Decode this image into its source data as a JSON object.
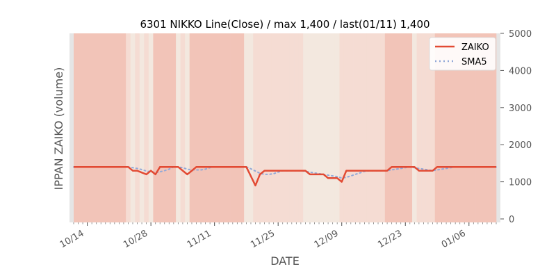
{
  "chart_data": {
    "type": "line",
    "title": "6301 NIKKO Line(Close) / max 1,400 / last(01/11) 1,400",
    "xlabel": "DATE",
    "ylabel": "IPPAN ZAIKO (volume)",
    "ylim": [
      0,
      5000
    ],
    "y_ticks": [
      "0",
      "1000",
      "2000",
      "3000",
      "4000",
      "5000"
    ],
    "y_axis_side": "right",
    "x_tick_labels": [
      "10/14",
      "10/28",
      "11/11",
      "11/25",
      "12/09",
      "12/23",
      "01/06"
    ],
    "grid": false,
    "legend_position": "top-right",
    "background_shading": "daily vertical bands in light red/beige tones",
    "colors": {
      "ZAIKO": "#e24a33",
      "SMA5": "#92a9d8",
      "band_dark": "#f2c4b8",
      "band_mid": "#f5dcd3",
      "band_light": "#f3e8df",
      "frame": "#e5e5e5"
    },
    "series": [
      {
        "name": "ZAIKO",
        "style": "solid",
        "values": [
          1400,
          1400,
          1400,
          1400,
          1400,
          1400,
          1400,
          1400,
          1400,
          1400,
          1400,
          1400,
          1400,
          1300,
          1300,
          1250,
          1200,
          1300,
          1200,
          1400,
          1400,
          1400,
          1400,
          1400,
          1300,
          1200,
          1300,
          1400,
          1400,
          1400,
          1400,
          1400,
          1400,
          1400,
          1400,
          1400,
          1400,
          1400,
          1400,
          1150,
          900,
          1200,
          1300,
          1300,
          1300,
          1300,
          1300,
          1300,
          1300,
          1300,
          1300,
          1300,
          1200,
          1200,
          1200,
          1200,
          1100,
          1100,
          1100,
          1000,
          1300,
          1300,
          1300,
          1300,
          1300,
          1300,
          1300,
          1300,
          1300,
          1300,
          1400,
          1400,
          1400,
          1400,
          1400,
          1400,
          1300,
          1300,
          1300,
          1300,
          1400,
          1400,
          1400,
          1400,
          1400,
          1400,
          1400,
          1400,
          1400,
          1400,
          1400,
          1400,
          1400,
          1400
        ]
      },
      {
        "name": "SMA5",
        "style": "dotted",
        "values": [
          1400,
          1400,
          1400,
          1400,
          1400,
          1400,
          1400,
          1400,
          1400,
          1400,
          1400,
          1400,
          1400,
          1380,
          1360,
          1330,
          1290,
          1270,
          1250,
          1270,
          1300,
          1340,
          1400,
          1400,
          1380,
          1340,
          1320,
          1320,
          1320,
          1340,
          1380,
          1400,
          1400,
          1400,
          1400,
          1400,
          1400,
          1400,
          1400,
          1350,
          1290,
          1230,
          1200,
          1200,
          1220,
          1260,
          1300,
          1300,
          1300,
          1300,
          1300,
          1280,
          1260,
          1240,
          1220,
          1200,
          1180,
          1160,
          1140,
          1100,
          1120,
          1160,
          1200,
          1240,
          1280,
          1300,
          1300,
          1300,
          1300,
          1300,
          1320,
          1340,
          1360,
          1380,
          1400,
          1380,
          1360,
          1340,
          1320,
          1300,
          1320,
          1340,
          1360,
          1380,
          1400,
          1400,
          1400,
          1400,
          1400,
          1400,
          1400,
          1400,
          1400,
          1400
        ]
      }
    ]
  }
}
